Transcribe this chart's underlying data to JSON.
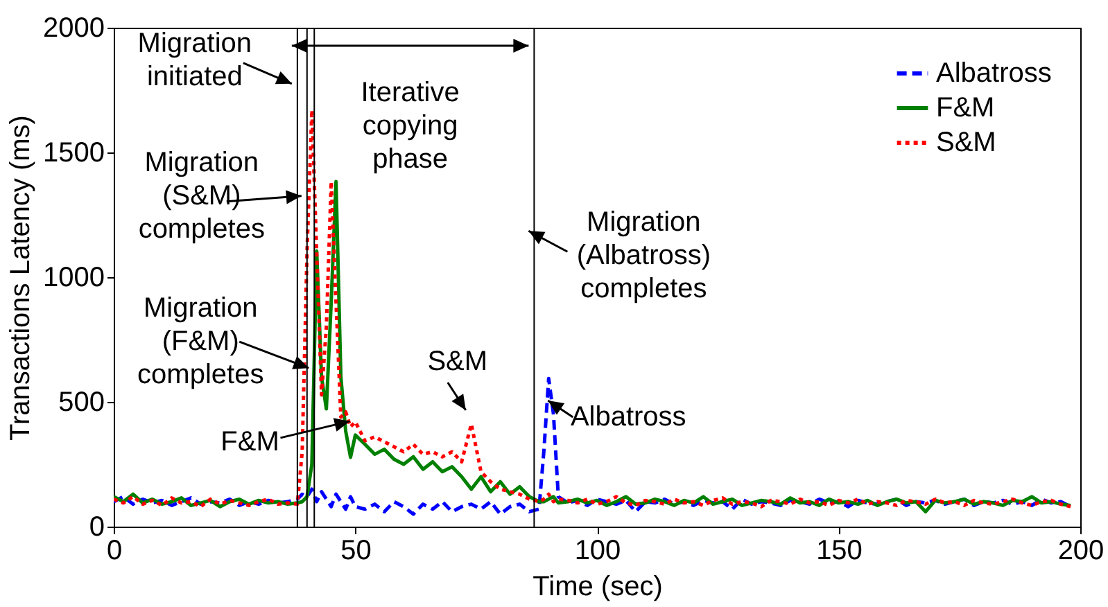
{
  "chart_data": {
    "type": "line",
    "xlabel": "Time (sec)",
    "ylabel": "Transactions Latency (ms)",
    "x": [
      0,
      2,
      4,
      6,
      8,
      10,
      12,
      14,
      16,
      18,
      20,
      22,
      24,
      26,
      28,
      30,
      32,
      34,
      36,
      38,
      39,
      40,
      41,
      42,
      43,
      44,
      45,
      46,
      47,
      48,
      49,
      50,
      52,
      54,
      56,
      58,
      60,
      62,
      64,
      66,
      68,
      70,
      72,
      74,
      76,
      78,
      80,
      82,
      84,
      86,
      88,
      89,
      90,
      91,
      92,
      94,
      96,
      98,
      100,
      102,
      104,
      106,
      108,
      110,
      112,
      114,
      116,
      118,
      120,
      122,
      124,
      126,
      128,
      130,
      132,
      134,
      136,
      138,
      140,
      142,
      144,
      146,
      148,
      150,
      152,
      154,
      156,
      158,
      160,
      162,
      164,
      166,
      168,
      170,
      172,
      174,
      176,
      178,
      180,
      182,
      184,
      186,
      188,
      190,
      192,
      194,
      196,
      198
    ],
    "series": [
      {
        "name": "Albatross",
        "color": "#0000ff",
        "line_style": "dashed",
        "values": [
          100,
          120,
          90,
          110,
          95,
          105,
          85,
          100,
          115,
          90,
          100,
          95,
          110,
          85,
          100,
          90,
          105,
          95,
          100,
          110,
          130,
          120,
          150,
          100,
          140,
          110,
          80,
          130,
          100,
          70,
          120,
          80,
          70,
          90,
          60,
          100,
          80,
          50,
          90,
          70,
          100,
          60,
          80,
          90,
          70,
          100,
          50,
          80,
          90,
          60,
          70,
          300,
          594,
          450,
          120,
          95,
          105,
          85,
          110,
          100,
          90,
          105,
          60,
          100,
          95,
          110,
          90,
          100,
          85,
          105,
          95,
          100,
          70,
          110,
          90,
          100,
          95,
          85,
          105,
          100,
          90,
          110,
          95,
          100,
          80,
          105,
          95,
          90,
          100,
          110,
          85,
          100,
          95,
          105,
          90,
          100,
          110,
          85,
          100,
          95,
          105,
          90,
          100,
          85,
          110,
          95,
          100,
          80
        ]
      },
      {
        "name": "F&M",
        "color": "#008000",
        "line_style": "solid",
        "values": [
          120,
          100,
          130,
          95,
          110,
          90,
          100,
          115,
          85,
          95,
          105,
          80,
          100,
          110,
          90,
          105,
          95,
          100,
          90,
          95,
          100,
          120,
          250,
          1105,
          600,
          472,
          900,
          1383,
          600,
          383,
          278,
          367,
          330,
          290,
          310,
          270,
          250,
          280,
          230,
          260,
          220,
          240,
          200,
          150,
          200,
          140,
          180,
          130,
          160,
          120,
          100,
          100,
          110,
          120,
          95,
          100,
          110,
          95,
          105,
          85,
          100,
          120,
          90,
          95,
          110,
          100,
          85,
          105,
          95,
          120,
          90,
          100,
          110,
          85,
          95,
          105,
          100,
          90,
          115,
          95,
          100,
          85,
          110,
          95,
          100,
          90,
          105,
          85,
          100,
          110,
          95,
          100,
          60,
          105,
          95,
          100,
          110,
          90,
          100,
          95,
          85,
          105,
          100,
          120,
          95,
          100,
          90,
          85
        ]
      },
      {
        "name": "S&M",
        "color": "#ff0000",
        "line_style": "dotted",
        "values": [
          110,
          95,
          120,
          90,
          105,
          85,
          115,
          95,
          100,
          80,
          110,
          90,
          105,
          95,
          85,
          100,
          110,
          90,
          95,
          90,
          300,
          1100,
          1670,
          1100,
          528,
          800,
          1383,
          900,
          439,
          460,
          400,
          420,
          344,
          360,
          340,
          320,
          300,
          330,
          290,
          300,
          280,
          300,
          260,
          411,
          220,
          180,
          150,
          140,
          130,
          110,
          100,
          110,
          130,
          100,
          110,
          105,
          95,
          110,
          90,
          100,
          120,
          95,
          85,
          105,
          100,
          90,
          110,
          95,
          100,
          85,
          105,
          115,
          90,
          100,
          95,
          80,
          105,
          100,
          90,
          110,
          95,
          100,
          85,
          105,
          95,
          110,
          90,
          100,
          95,
          85,
          105,
          100,
          90,
          110,
          95,
          100,
          85,
          105,
          95,
          90,
          100,
          110,
          95,
          85,
          100,
          105,
          90,
          80
        ]
      }
    ],
    "xlim": [
      0,
      200
    ],
    "xticks": [
      0,
      50,
      100,
      150,
      200
    ],
    "ylim": [
      0,
      2000
    ],
    "yticks": [
      0,
      500,
      1000,
      1500,
      2000
    ],
    "legend": "top right",
    "grid": false,
    "ref_lines": [
      {
        "axis": "x",
        "value": 38,
        "color": "#000000"
      },
      {
        "axis": "x",
        "value": 40,
        "color": "#000000"
      },
      {
        "axis": "x",
        "value": 41.5,
        "color": "#000000"
      },
      {
        "axis": "x",
        "value": 87,
        "color": "#000000"
      }
    ],
    "annotations": [
      "Iterative copying phase",
      {
        "text": "Migration initiated",
        "x": 38,
        "y": 1720
      },
      {
        "text": "Migration (S&M) completes",
        "x": 40,
        "y": 1270
      },
      {
        "text": "Migration (F&M) completes",
        "x": 41.5,
        "y": 580
      },
      {
        "text": "Migration (Albatross) completes",
        "x": 87,
        "y": 1130
      },
      {
        "text": "S&M",
        "x": 74,
        "y": 411
      },
      {
        "text": "F&M",
        "x": 50,
        "y": 367
      },
      {
        "text": "Albatross",
        "x": 91,
        "y": 450
      }
    ]
  }
}
